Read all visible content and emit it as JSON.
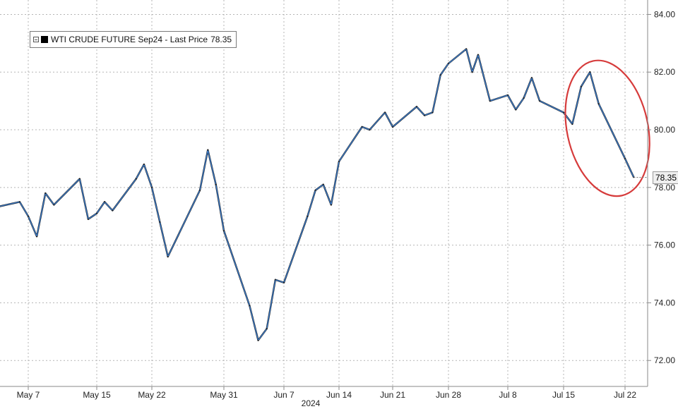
{
  "chart_data": {
    "type": "line",
    "title": "",
    "xlabel": "2024",
    "ylabel": "",
    "x_ticks": [
      "May 7",
      "May 15",
      "May 22",
      "May 31",
      "Jun 7",
      "Jun 14",
      "Jun 21",
      "Jun 28",
      "Jul 8",
      "Jul 15",
      "Jul 22"
    ],
    "y_ticks": [
      "72.00",
      "74.00",
      "76.00",
      "78.00",
      "80.00",
      "82.00",
      "84.00"
    ],
    "ylim": [
      71.1,
      84.5
    ],
    "grid": true,
    "legend_position": "top-left",
    "legend": {
      "series_label": "WTI CRUDE FUTURE Sep24",
      "separator": " - ",
      "last_price_label": "Last Price",
      "last_price_value": "78.35"
    },
    "last_price": 78.35,
    "last_price_tag": "78.35",
    "series": [
      {
        "name": "WTI CRUDE FUTURE Sep24",
        "x": [
          "May 2",
          "May 3",
          "May 6",
          "May 7",
          "May 8",
          "May 9",
          "May 10",
          "May 13",
          "May 14",
          "May 15",
          "May 16",
          "May 17",
          "May 20",
          "May 21",
          "May 22",
          "May 23",
          "May 24",
          "May 28",
          "May 29",
          "May 30",
          "May 31",
          "Jun 3",
          "Jun 4",
          "Jun 5",
          "Jun 6",
          "Jun 7",
          "Jun 10",
          "Jun 11",
          "Jun 12",
          "Jun 13",
          "Jun 14",
          "Jun 17",
          "Jun 18",
          "Jun 20",
          "Jun 21",
          "Jun 24",
          "Jun 25",
          "Jun 26",
          "Jun 27",
          "Jun 28",
          "Jul 1",
          "Jul 2",
          "Jul 3",
          "Jul 5",
          "Jul 8",
          "Jul 9",
          "Jul 10",
          "Jul 11",
          "Jul 12",
          "Jul 15",
          "Jul 16",
          "Jul 17",
          "Jul 18",
          "Jul 19",
          "Jul 22",
          "Jul 23"
        ],
        "values": [
          77.6,
          77.3,
          77.5,
          77.0,
          76.3,
          77.8,
          77.4,
          78.3,
          76.9,
          77.1,
          77.5,
          77.2,
          78.3,
          78.8,
          78.0,
          76.8,
          75.6,
          77.9,
          79.3,
          78.1,
          76.5,
          73.9,
          72.7,
          73.1,
          74.8,
          74.7,
          77.0,
          77.9,
          78.1,
          77.4,
          78.9,
          80.1,
          80.0,
          80.6,
          80.1,
          80.8,
          80.5,
          80.6,
          81.9,
          82.3,
          82.8,
          82.0,
          82.6,
          81.0,
          81.2,
          80.7,
          81.1,
          81.8,
          81.0,
          80.6,
          80.2,
          81.5,
          82.0,
          80.9,
          79.0,
          78.35
        ]
      }
    ],
    "highlight": {
      "shape": "ellipse",
      "color": "#d63b3b",
      "around": [
        "Jul 17",
        "Jul 23"
      ]
    },
    "colors": {
      "line_dark": "#1a1a1a",
      "line_blue": "#3d7fd0",
      "grid": "#b5b5b5",
      "axis": "#888888"
    }
  }
}
